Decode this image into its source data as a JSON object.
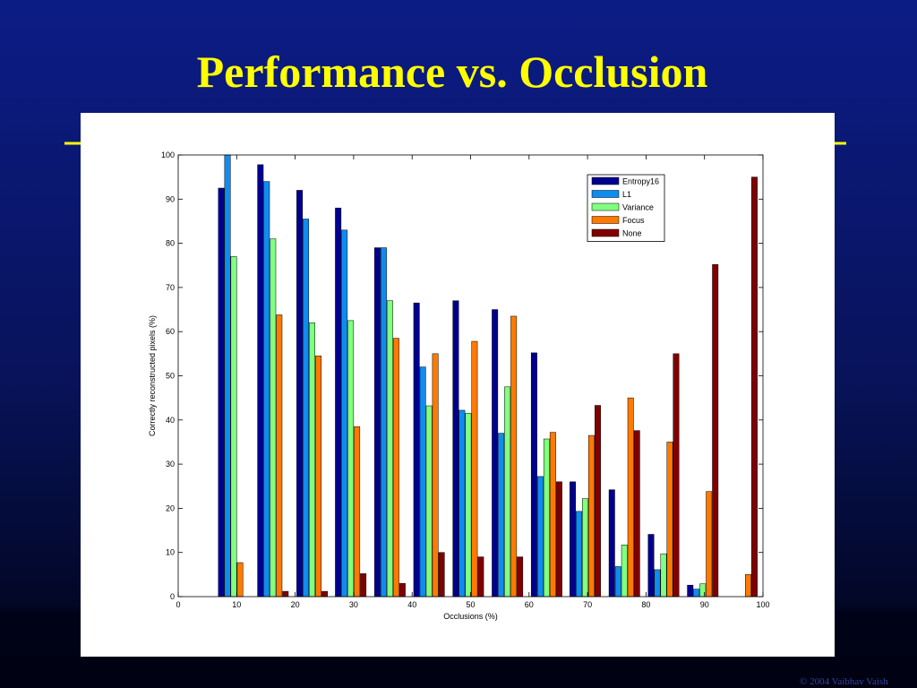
{
  "title": "Performance vs. Occlusion",
  "footer": "© 2004 Vaibhav Vaish",
  "chart_data": {
    "type": "bar",
    "xlabel": "Occlusions (%)",
    "ylabel": "Correctly reconstructed pixels (%)",
    "x": [
      9.5,
      16.2,
      22.9,
      29.5,
      36.2,
      42.9,
      49.6,
      56.3,
      63.0,
      69.6,
      76.3,
      83.0,
      89.7,
      96.4
    ],
    "series": [
      {
        "name": "Entropy16",
        "color": "#00008f",
        "values": [
          92.5,
          97.8,
          92,
          88,
          79,
          66.5,
          67,
          65,
          55.2,
          26,
          24.2,
          14.1,
          2.6,
          0
        ]
      },
      {
        "name": "L1",
        "color": "#0f8cf0",
        "values": [
          100,
          94,
          85.5,
          83,
          79,
          52,
          42.2,
          37,
          27.2,
          19.3,
          6.8,
          6.1,
          1.7,
          0
        ]
      },
      {
        "name": "Variance",
        "color": "#80ff80",
        "values": [
          77,
          81,
          62,
          62.5,
          67,
          43.2,
          41.5,
          47.5,
          35.7,
          22.2,
          11.7,
          9.7,
          2.9,
          0
        ]
      },
      {
        "name": "Focus",
        "color": "#ff7a00",
        "values": [
          7.7,
          63.8,
          54.5,
          38.5,
          58.5,
          55,
          57.8,
          63.5,
          37.2,
          36.5,
          45,
          35,
          23.8,
          5
        ]
      },
      {
        "name": "None",
        "color": "#800000",
        "values": [
          0,
          1.2,
          1.2,
          5.2,
          3,
          10,
          9,
          9,
          26,
          43.3,
          37.6,
          55,
          75.2,
          95
        ]
      }
    ],
    "xlim": [
      0,
      100
    ],
    "xticks": [
      0,
      10,
      20,
      30,
      40,
      50,
      60,
      70,
      80,
      90,
      100
    ],
    "ylim": [
      0,
      100
    ],
    "yticks": [
      0,
      10,
      20,
      30,
      40,
      50,
      60,
      70,
      80,
      90,
      100
    ],
    "grid": false,
    "legend": "upper right"
  }
}
